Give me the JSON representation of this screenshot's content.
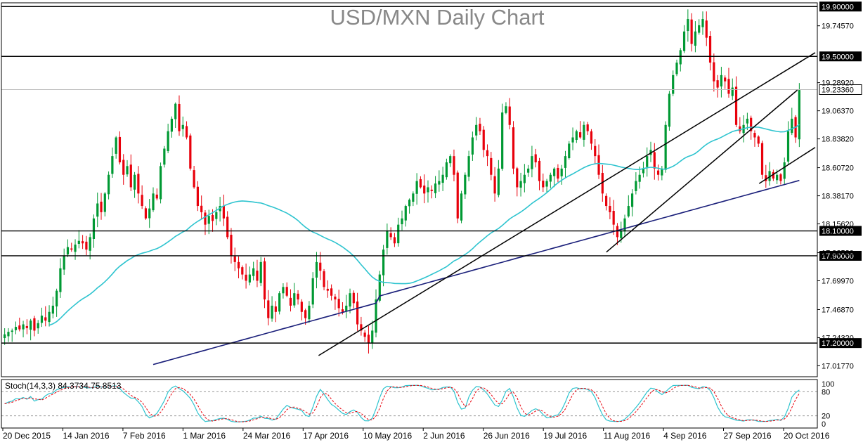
{
  "chart_data": {
    "type": "candlestick",
    "title": "USD/MXN Daily Chart",
    "price_axis": {
      "ticks": [
        "19.74570",
        "19.28920",
        "19.06370",
        "18.83820",
        "18.60720",
        "18.38170",
        "18.15620",
        "17.92520",
        "17.69970",
        "17.46870",
        "17.24320",
        "17.01770"
      ],
      "ylim": [
        16.93,
        19.93
      ]
    },
    "date_axis": {
      "labels": [
        "20 Dec 2015",
        "14 Jan 2016",
        "7 Feb 2016",
        "1 Mar 2016",
        "24 Mar 2016",
        "17 Apr 2016",
        "10 May 2016",
        "2 Jun 2016",
        "26 Jun 2016",
        "19 Jul 2016",
        "11 Aug 2016",
        "4 Sep 2016",
        "27 Sep 2016",
        "20 Oct 2016"
      ]
    },
    "horizontal_levels": [
      {
        "value": 19.9,
        "label": "19.90000"
      },
      {
        "value": 19.5,
        "label": "19.50000"
      },
      {
        "value": 18.1,
        "label": "18.10000"
      },
      {
        "value": 17.9,
        "label": "17.90000"
      },
      {
        "value": 17.2,
        "label": "17.20000"
      }
    ],
    "last_price": {
      "value": 19.2336,
      "label": "19.23360"
    },
    "trendlines": [
      {
        "from": {
          "date": "2016-04-20",
          "price": 17.1
        },
        "to": {
          "date": "2016-11-01",
          "price": 19.53
        }
      },
      {
        "from": {
          "date": "2016-08-11",
          "price": 17.93
        },
        "to": {
          "date": "2016-10-25",
          "price": 19.23
        }
      },
      {
        "from": {
          "date": "2016-10-10",
          "price": 18.48
        },
        "to": {
          "date": "2016-11-01",
          "price": 18.77
        }
      }
    ],
    "candles_close": [
      17.27,
      17.29,
      17.3,
      17.33,
      17.31,
      17.35,
      17.32,
      17.38,
      17.3,
      17.36,
      17.42,
      17.38,
      17.45,
      17.5,
      17.62,
      17.8,
      17.9,
      17.97,
      17.95,
      17.99,
      18.02,
      18.0,
      17.95,
      18.05,
      18.2,
      18.32,
      18.25,
      18.4,
      18.55,
      18.7,
      18.85,
      18.65,
      18.55,
      18.62,
      18.45,
      18.55,
      18.4,
      18.3,
      18.2,
      18.28,
      18.4,
      18.36,
      18.62,
      18.76,
      18.9,
      19.0,
      19.12,
      18.9,
      18.95,
      18.85,
      18.6,
      18.45,
      18.3,
      18.25,
      18.15,
      18.22,
      18.18,
      18.25,
      18.3,
      18.2,
      18.05,
      17.9,
      17.85,
      17.8,
      17.75,
      17.7,
      17.75,
      17.8,
      17.7,
      17.85,
      17.55,
      17.4,
      17.5,
      17.45,
      17.6,
      17.65,
      17.58,
      17.5,
      17.6,
      17.55,
      17.45,
      17.4,
      17.5,
      17.72,
      17.85,
      17.78,
      17.65,
      17.62,
      17.58,
      17.55,
      17.48,
      17.45,
      17.5,
      17.6,
      17.52,
      17.35,
      17.3,
      17.25,
      17.2,
      17.3,
      17.55,
      17.75,
      17.95,
      18.1,
      18.05,
      18.0,
      18.15,
      18.2,
      18.3,
      18.35,
      18.4,
      18.5,
      18.45,
      18.4,
      18.45,
      18.42,
      18.48,
      18.5,
      18.55,
      18.65,
      18.7,
      18.55,
      18.2,
      18.4,
      18.55,
      18.7,
      18.85,
      18.95,
      18.9,
      18.75,
      18.7,
      18.55,
      18.4,
      18.6,
      19.05,
      19.1,
      18.95,
      18.6,
      18.45,
      18.5,
      18.55,
      18.6,
      18.7,
      18.65,
      18.5,
      18.45,
      18.5,
      18.55,
      18.6,
      18.52,
      18.6,
      18.7,
      18.8,
      18.85,
      18.9,
      18.85,
      18.95,
      18.9,
      18.8,
      18.7,
      18.55,
      18.4,
      18.3,
      18.25,
      18.15,
      18.05,
      18.1,
      18.2,
      18.3,
      18.4,
      18.5,
      18.55,
      18.6,
      18.7,
      18.75,
      18.6,
      18.55,
      18.6,
      18.95,
      19.2,
      19.35,
      19.45,
      19.55,
      19.7,
      19.8,
      19.6,
      19.7,
      19.75,
      19.8,
      19.65,
      19.45,
      19.3,
      19.25,
      19.35,
      19.3,
      19.2,
      19.25,
      18.95,
      18.9,
      18.95,
      19.0,
      18.9,
      18.85,
      18.8,
      18.55,
      18.5,
      18.58,
      18.52,
      18.55,
      18.5,
      18.65,
      18.9,
      19.0,
      18.85,
      19.23
    ],
    "stochastic": {
      "label": "Stoch(14,3,3) 84.3734 75.8513",
      "k": 84.3734,
      "d": 75.8513,
      "levels": [
        100,
        80,
        20,
        0
      ],
      "level_labels": [
        "100",
        "80",
        "20",
        "0"
      ]
    },
    "colors": {
      "bull": "#009933",
      "bear": "#e8000b",
      "ma_fast": "#2ec4cf",
      "ma_slow": "#1a1f7a",
      "trend": "#000000"
    }
  }
}
